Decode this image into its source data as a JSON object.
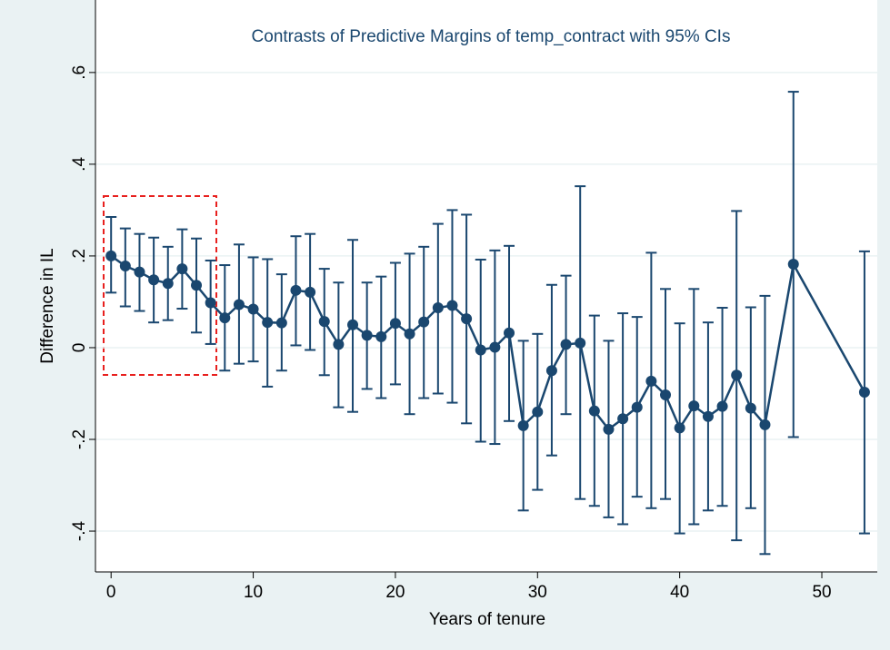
{
  "chart_data": {
    "type": "errorbar-line",
    "title": "Contrasts of Predictive Margins of temp_contract with 95% CIs",
    "xlabel": "Years of tenure",
    "ylabel": "Difference in IL",
    "xlim": [
      -1.1,
      53.9
    ],
    "ylim": [
      -0.489,
      0.669
    ],
    "xticks": [
      0,
      10,
      20,
      30,
      40,
      50
    ],
    "yticks": [
      {
        "value": -0.4,
        "label": "-.4"
      },
      {
        "value": -0.2,
        "label": "-.2"
      },
      0,
      {
        "value": 0.2,
        "label": ".2"
      },
      {
        "value": 0.4,
        "label": ".4"
      },
      {
        "value": 0.6,
        "label": ".6"
      }
    ],
    "grid": true,
    "series": [
      {
        "color": "#1a476f",
        "x": [
          0,
          1,
          2,
          3,
          4,
          5,
          6,
          7,
          8,
          9,
          10,
          11,
          12,
          13,
          14,
          15,
          16,
          17,
          18,
          19,
          20,
          21,
          22,
          23,
          24,
          25,
          26,
          27,
          28,
          29,
          30,
          31,
          32,
          33,
          34,
          35,
          36,
          37,
          38,
          39,
          40,
          41,
          42,
          43,
          44,
          45,
          46,
          48,
          53
        ],
        "values": [
          0.2,
          0.178,
          0.165,
          0.148,
          0.14,
          0.172,
          0.136,
          0.098,
          0.065,
          0.094,
          0.084,
          0.055,
          0.054,
          0.125,
          0.121,
          0.057,
          0.007,
          0.05,
          0.027,
          0.024,
          0.053,
          0.03,
          0.056,
          0.087,
          0.092,
          0.063,
          -0.005,
          0.001,
          0.032,
          -0.17,
          -0.14,
          -0.05,
          0.007,
          0.01,
          -0.138,
          -0.178,
          -0.155,
          -0.13,
          -0.073,
          -0.103,
          -0.175,
          -0.127,
          -0.15,
          -0.128,
          -0.06,
          -0.132,
          -0.168,
          0.182,
          -0.097
        ],
        "lower": [
          0.12,
          0.09,
          0.08,
          0.055,
          0.06,
          0.085,
          0.033,
          0.008,
          -0.05,
          -0.035,
          -0.03,
          -0.085,
          -0.05,
          0.005,
          -0.005,
          -0.06,
          -0.13,
          -0.14,
          -0.09,
          -0.11,
          -0.08,
          -0.145,
          -0.11,
          -0.1,
          -0.12,
          -0.165,
          -0.205,
          -0.21,
          -0.16,
          -0.355,
          -0.31,
          -0.235,
          -0.145,
          -0.33,
          -0.345,
          -0.37,
          -0.385,
          -0.325,
          -0.35,
          -0.33,
          -0.405,
          -0.385,
          -0.355,
          -0.345,
          -0.42,
          -0.35,
          -0.45,
          -0.195,
          -0.405
        ],
        "upper": [
          0.285,
          0.26,
          0.248,
          0.24,
          0.22,
          0.258,
          0.238,
          0.19,
          0.18,
          0.225,
          0.197,
          0.193,
          0.16,
          0.243,
          0.248,
          0.172,
          0.142,
          0.235,
          0.142,
          0.155,
          0.185,
          0.205,
          0.22,
          0.27,
          0.3,
          0.29,
          0.192,
          0.212,
          0.222,
          0.015,
          0.03,
          0.137,
          0.157,
          0.352,
          0.07,
          0.015,
          0.075,
          0.067,
          0.207,
          0.128,
          0.053,
          0.128,
          0.055,
          0.087,
          0.298,
          0.088,
          0.113,
          0.558,
          0.21
        ]
      }
    ]
  }
}
